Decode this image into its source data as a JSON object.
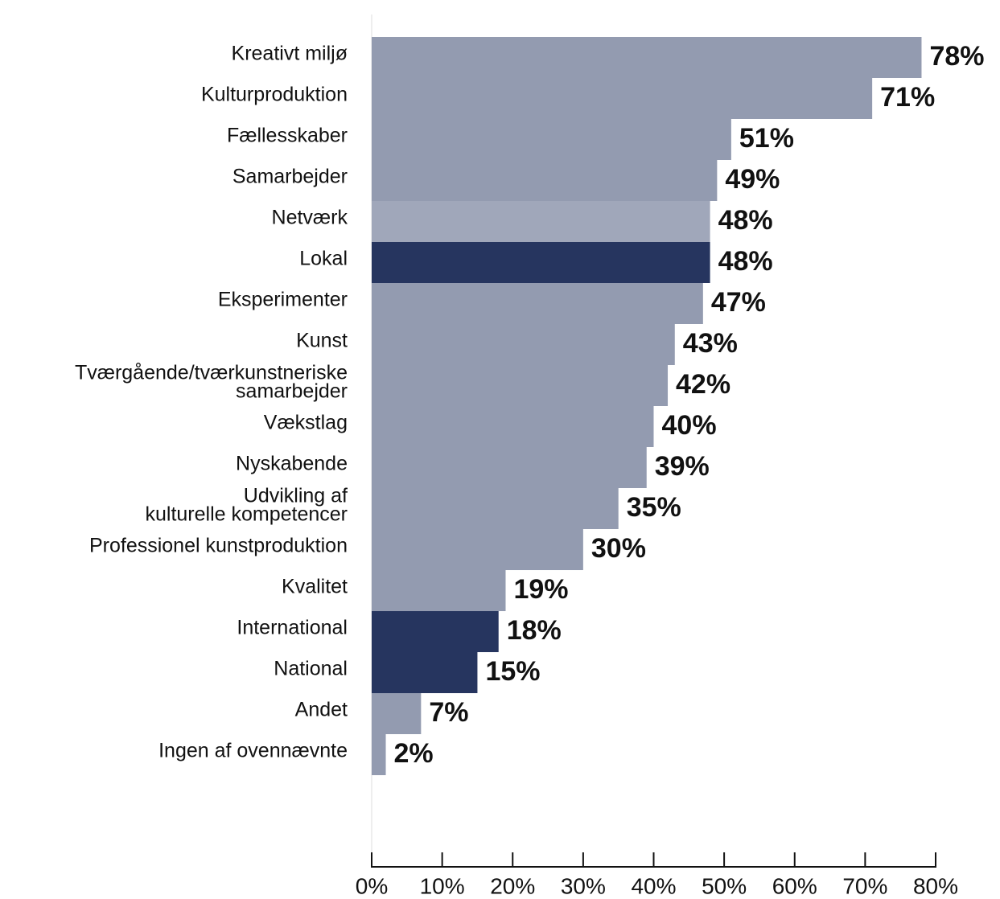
{
  "chart_data": {
    "type": "bar",
    "orientation": "horizontal",
    "categories": [
      "Kreativt miljø",
      "Kulturproduktion",
      "Fællesskaber",
      "Samarbejder",
      "Netværk",
      "Lokal",
      "Eksperimenter",
      "Kunst",
      "Tværgående/tværkunstneriske\nsamarbejder",
      "Vækstlag",
      "Nyskabende",
      "Udvikling af\nkulturelle kompetencer",
      "Professionel kunstproduktion",
      "Kvalitet",
      "International",
      "National",
      "Andet",
      "Ingen af ovennævnte"
    ],
    "values": [
      78,
      71,
      51,
      49,
      48,
      48,
      47,
      43,
      42,
      40,
      39,
      35,
      30,
      19,
      18,
      15,
      7,
      2
    ],
    "value_labels": [
      "78%",
      "71%",
      "51%",
      "49%",
      "48%",
      "48%",
      "47%",
      "43%",
      "42%",
      "40%",
      "39%",
      "35%",
      "30%",
      "19%",
      "18%",
      "15%",
      "7%",
      "2%"
    ],
    "colors": [
      "#939bb0",
      "#939bb0",
      "#939bb0",
      "#939bb0",
      "#a0a7ba",
      "#26355f",
      "#939bb0",
      "#939bb0",
      "#939bb0",
      "#939bb0",
      "#939bb0",
      "#939bb0",
      "#939bb0",
      "#939bb0",
      "#26355f",
      "#26355f",
      "#939bb0",
      "#939bb0"
    ],
    "xlim": [
      0,
      80
    ],
    "xticks": [
      {
        "value": 0,
        "label": "0%"
      },
      {
        "value": 10,
        "label": "10%"
      },
      {
        "value": 20,
        "label": "20%"
      },
      {
        "value": 30,
        "label": "30%"
      },
      {
        "value": 40,
        "label": "40%"
      },
      {
        "value": 50,
        "label": "50%"
      },
      {
        "value": 60,
        "label": "60%"
      },
      {
        "value": 70,
        "label": "70%"
      },
      {
        "value": 80,
        "label": "80%"
      }
    ]
  }
}
